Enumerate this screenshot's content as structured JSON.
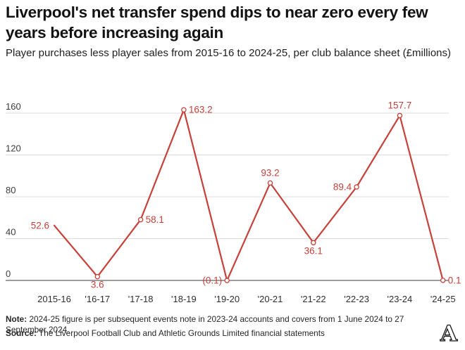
{
  "header": {
    "title": "Liverpool's net transfer spend dips to near zero every few years before increasing again",
    "subtitle": "Player purchases less player sales from 2015-16 to 2024-25, per club balance sheet (£millions)"
  },
  "chart_data": {
    "type": "line",
    "title": "Liverpool's net transfer spend dips to near zero every few years before increasing again",
    "subtitle": "Player purchases less player sales from 2015-16 to 2024-25, per club balance sheet (£millions)",
    "categories": [
      "2015-16",
      "'16-17",
      "'17-18",
      "'18-19",
      "'19-20",
      "'20-21",
      "'21-22",
      "'22-23",
      "'23-24",
      "'24-25"
    ],
    "series": [
      {
        "name": "Net transfer spend (£millions)",
        "values": [
          52.6,
          3.6,
          58.1,
          163.2,
          -0.1,
          93.2,
          36.1,
          89.4,
          157.7,
          0.1
        ],
        "point_labels": [
          "52.6",
          "3.6",
          "58.1",
          "163.2",
          "(0.1)",
          "93.2",
          "36.1",
          "89.4",
          "157.7",
          "0.1"
        ],
        "label_placement": [
          "left",
          "below",
          "right",
          "right",
          "left",
          "above",
          "below",
          "left",
          "above",
          "right"
        ],
        "markers": [
          false,
          true,
          true,
          true,
          true,
          true,
          true,
          true,
          true,
          true
        ]
      }
    ],
    "xlabel": "",
    "ylabel": "",
    "y_ticks": [
      0,
      40,
      80,
      120,
      160
    ],
    "ylim": [
      -5,
      170
    ],
    "grid": "horizontal",
    "legend": "none",
    "colors": {
      "line": "#c5413a",
      "marker_fill": "#ffffff",
      "gridline": "#dcdcdc",
      "zero_line": "#7d7d7d",
      "tick_label": "#3c3c3c",
      "category_label": "#2e2e2e"
    }
  },
  "footer": {
    "note_label": "Note:",
    "note_text": "2024-25 figure is per subsequent events note in 2023-24 accounts and covers from 1 June 2024 to 27 September 2024.",
    "source_label": "Source:",
    "source_text": "The Liverpool Football Club and Athletic Grounds Limited financial statements",
    "logo_letter": "A"
  }
}
